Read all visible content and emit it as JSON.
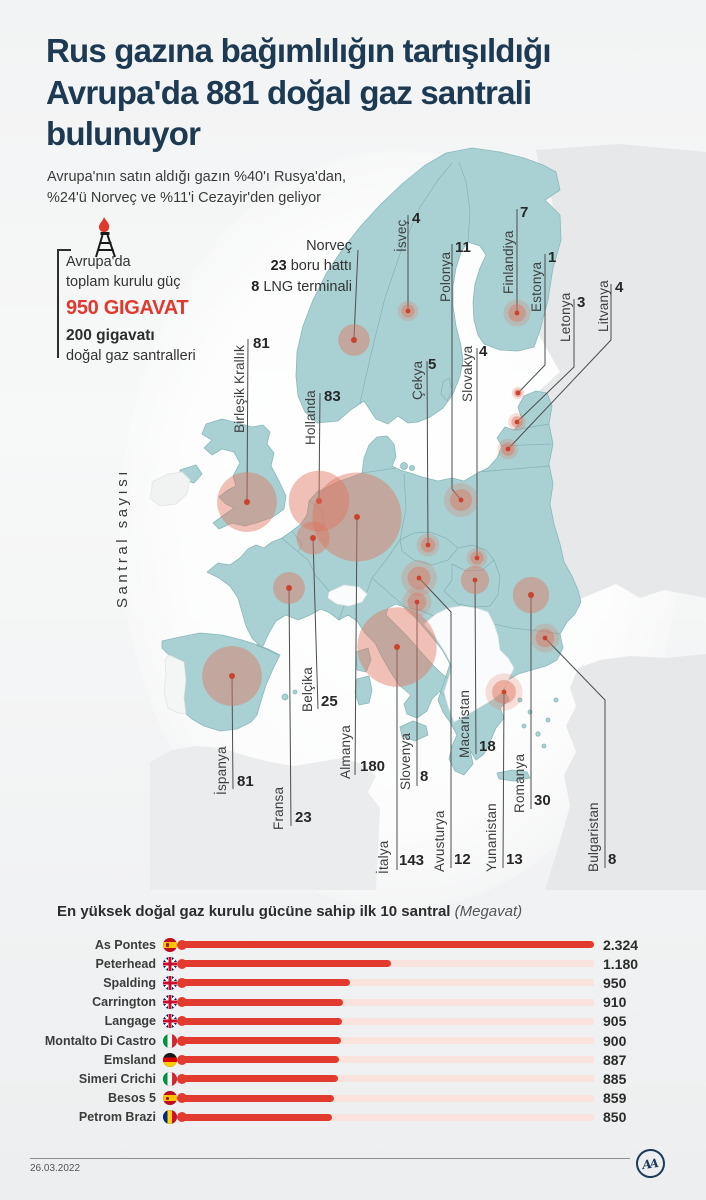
{
  "header": {
    "title_lines": [
      "Rus gazına bağımlılığın tartışıldığı",
      "Avrupa'da 881 doğal gaz santrali",
      "bulunuyor"
    ],
    "subtitle_lines": [
      "Avrupa'nın satın aldığı gazın %40'ı Rusya'dan,",
      "%24'ü Norveç ve %11'i Cezayir'den geliyor"
    ],
    "title_color": "#1d3a52"
  },
  "installed_power": {
    "icon": "oil-derrick-flame-icon",
    "line1": "Avrupa'da",
    "line2": "toplam kurulu güç",
    "highlight": "950 GIGAVAT",
    "line3_bold": "200 gigavatı",
    "line4": "doğal gaz santralleri",
    "highlight_color": "#e0392e"
  },
  "norway": {
    "name": "Norveç",
    "pipelines_value": "23",
    "pipelines_label": " boru hattı",
    "lng_value": "8",
    "lng_label": " LNG terminali"
  },
  "map": {
    "axis_label": "Santral sayısı",
    "land_color": "#a9d1d3",
    "non_eu_color": "#e7e8ea",
    "bubble_color": "#df745d",
    "dot_color": "#c9432f"
  },
  "chart_data": [
    {
      "type": "bubble-map",
      "label": "Santral sayısı",
      "countries": [
        {
          "name": "Birleşik Krallık",
          "value": 81
        },
        {
          "name": "Hollanda",
          "value": 83
        },
        {
          "name": "İsveç",
          "value": 4
        },
        {
          "name": "Polonya",
          "value": 11
        },
        {
          "name": "Finlandiya",
          "value": 7
        },
        {
          "name": "Estonya",
          "value": 1
        },
        {
          "name": "Letonya",
          "value": 3
        },
        {
          "name": "Litvanya",
          "value": 4
        },
        {
          "name": "Çekya",
          "value": 5
        },
        {
          "name": "Slovakya",
          "value": 4
        },
        {
          "name": "İspanya",
          "value": 81
        },
        {
          "name": "Fransa",
          "value": 23
        },
        {
          "name": "Belçika",
          "value": 25
        },
        {
          "name": "Almanya",
          "value": 180
        },
        {
          "name": "Slovenya",
          "value": 8
        },
        {
          "name": "İtalya",
          "value": 143
        },
        {
          "name": "Avusturya",
          "value": 12
        },
        {
          "name": "Macaristan",
          "value": 18
        },
        {
          "name": "Yunanistan",
          "value": 13
        },
        {
          "name": "Romanya",
          "value": 30
        },
        {
          "name": "Bulgaristan",
          "value": 8
        }
      ]
    },
    {
      "type": "bar",
      "title": "En yüksek doğal gaz kurulu gücüne sahip ilk 10 santral",
      "unit": " (Megavat)",
      "max": 2324,
      "bar_color": "#e23a2e",
      "track_color": "#fae2dd",
      "items": [
        {
          "name": "As Pontes",
          "flag": "es",
          "value": 2324,
          "display": "2.324"
        },
        {
          "name": "Peterhead",
          "flag": "gb",
          "value": 1180,
          "display": "1.180"
        },
        {
          "name": "Spalding",
          "flag": "gb",
          "value": 950,
          "display": "950"
        },
        {
          "name": "Carrington",
          "flag": "gb",
          "value": 910,
          "display": "910"
        },
        {
          "name": "Langage",
          "flag": "gb",
          "value": 905,
          "display": "905"
        },
        {
          "name": "Montalto Di Castro",
          "flag": "it",
          "value": 900,
          "display": "900"
        },
        {
          "name": "Emsland",
          "flag": "de",
          "value": 887,
          "display": "887"
        },
        {
          "name": "Simeri Crichi",
          "flag": "it",
          "value": 885,
          "display": "885"
        },
        {
          "name": "Besos 5",
          "flag": "es",
          "value": 859,
          "display": "859"
        },
        {
          "name": "Petrom Brazi",
          "flag": "ro",
          "value": 850,
          "display": "850"
        }
      ]
    }
  ],
  "footer": {
    "date": "26.03.2022",
    "logo": "AA"
  }
}
